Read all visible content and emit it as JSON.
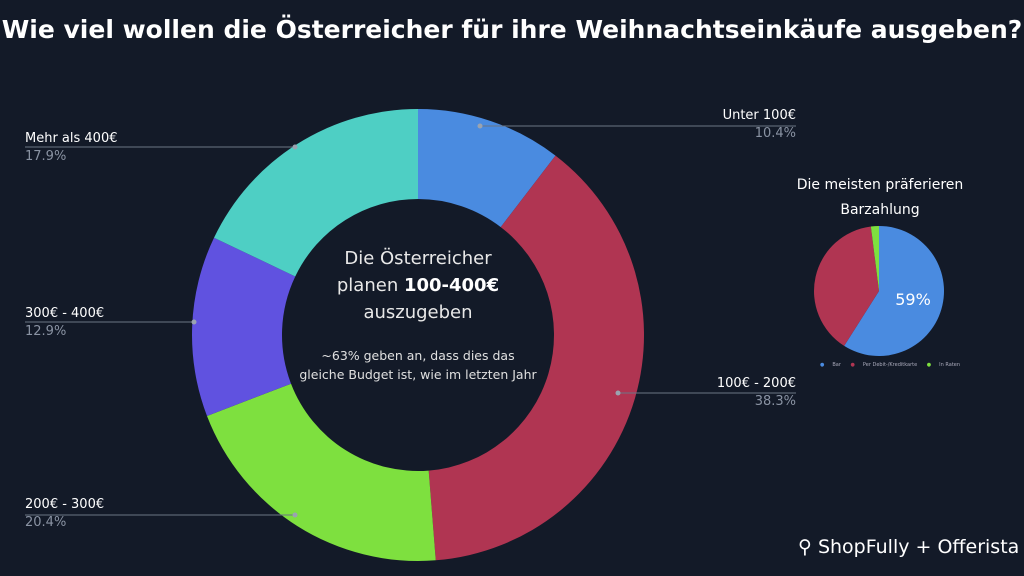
{
  "title": "Wie viel wollen die Österreicher für ihre Weihnachtseinkäufe ausgeben?",
  "center": {
    "line1": "Die Österreicher",
    "line2a": "planen ",
    "line2b": "100-400€",
    "line3": "auszugeben",
    "note": "~63% geben an, dass dies das gleiche Budget ist, wie im letzten Jahr"
  },
  "chart_data": [
    {
      "type": "pie",
      "donut": true,
      "categories": [
        "Unter 100€",
        "100€ - 200€",
        "200€ - 300€",
        "300€ - 400€",
        "Mehr als 400€"
      ],
      "values": [
        10.4,
        38.3,
        20.4,
        12.9,
        17.9
      ],
      "labels": [
        "10.4%",
        "38.3%",
        "20.4%",
        "12.9%",
        "17.9%"
      ],
      "colors": [
        "#4a8be0",
        "#b03552",
        "#7ee03f",
        "#6052e0",
        "#4ecfc4"
      ]
    },
    {
      "type": "pie",
      "title": "Die meisten präferieren Barzahlung",
      "categories": [
        "Bar",
        "Per Debit-/Kreditkarte",
        "In Raten"
      ],
      "values": [
        59,
        39,
        2
      ],
      "data_label": "59%",
      "colors": [
        "#4a8be0",
        "#b03552",
        "#7ee03f"
      ]
    }
  ],
  "logo": {
    "text": "ShopFully + Offerista"
  }
}
